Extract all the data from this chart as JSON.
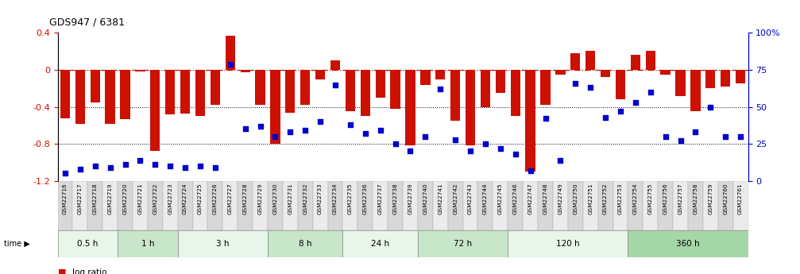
{
  "title": "GDS947 / 6381",
  "samples": [
    "GSM22716",
    "GSM22717",
    "GSM22718",
    "GSM22719",
    "GSM22720",
    "GSM22721",
    "GSM22722",
    "GSM22723",
    "GSM22724",
    "GSM22725",
    "GSM22726",
    "GSM22727",
    "GSM22728",
    "GSM22729",
    "GSM22730",
    "GSM22731",
    "GSM22732",
    "GSM22733",
    "GSM22734",
    "GSM22735",
    "GSM22736",
    "GSM22737",
    "GSM22738",
    "GSM22739",
    "GSM22740",
    "GSM22741",
    "GSM22742",
    "GSM22743",
    "GSM22744",
    "GSM22745",
    "GSM22746",
    "GSM22747",
    "GSM22748",
    "GSM22749",
    "GSM22750",
    "GSM22751",
    "GSM22752",
    "GSM22753",
    "GSM22754",
    "GSM22755",
    "GSM22756",
    "GSM22757",
    "GSM22758",
    "GSM22759",
    "GSM22760",
    "GSM22761"
  ],
  "log_ratio": [
    -0.52,
    -0.58,
    -0.35,
    -0.58,
    -0.53,
    -0.02,
    -0.88,
    -0.48,
    -0.47,
    -0.5,
    -0.38,
    0.37,
    -0.03,
    -0.38,
    -0.8,
    -0.46,
    -0.38,
    -0.1,
    0.1,
    -0.45,
    -0.5,
    -0.3,
    -0.42,
    -0.82,
    -0.16,
    -0.1,
    -0.55,
    -0.82,
    -0.4,
    -0.25,
    -0.5,
    -1.1,
    -0.38,
    -0.05,
    0.18,
    0.21,
    -0.08,
    -0.32,
    0.16,
    0.21,
    -0.05,
    -0.28,
    -0.45,
    -0.2,
    -0.18,
    -0.15
  ],
  "percentile": [
    5,
    8,
    10,
    9,
    11,
    14,
    11,
    10,
    9,
    10,
    9,
    79,
    35,
    37,
    30,
    33,
    34,
    40,
    65,
    38,
    32,
    34,
    25,
    20,
    30,
    62,
    28,
    20,
    25,
    22,
    18,
    7,
    42,
    14,
    66,
    63,
    43,
    47,
    53,
    60,
    30,
    27,
    33,
    50,
    30,
    30
  ],
  "time_groups": [
    {
      "label": "0.5 h",
      "start": 0,
      "end": 3,
      "color": "#e8f5e9"
    },
    {
      "label": "1 h",
      "start": 4,
      "end": 7,
      "color": "#c8e6c9"
    },
    {
      "label": "3 h",
      "start": 8,
      "end": 13,
      "color": "#e8f5e9"
    },
    {
      "label": "8 h",
      "start": 14,
      "end": 18,
      "color": "#c8e6c9"
    },
    {
      "label": "24 h",
      "start": 19,
      "end": 23,
      "color": "#e8f5e9"
    },
    {
      "label": "72 h",
      "start": 24,
      "end": 29,
      "color": "#c8e6c9"
    },
    {
      "label": "120 h",
      "start": 30,
      "end": 37,
      "color": "#e8f5e9"
    },
    {
      "label": "360 h",
      "start": 38,
      "end": 45,
      "color": "#a5d6a7"
    }
  ],
  "ylim_left": [
    -1.2,
    0.4
  ],
  "ylim_right": [
    0,
    100
  ],
  "bar_color": "#cc1100",
  "dot_color": "#0000cc",
  "hline_color": "#cc1100",
  "hline_style": "-.",
  "dot_yticks": [
    0,
    25,
    50,
    75,
    100
  ],
  "dot_ytick_labels": [
    "0",
    "25",
    "50",
    "75",
    "100%"
  ],
  "left_yticks": [
    -1.2,
    -0.8,
    -0.4,
    0.0,
    0.4
  ],
  "left_ytick_labels": [
    "-1.2",
    "-0.8",
    "-0.4",
    "0",
    "0.4"
  ],
  "xlabel_box_colors": [
    "#d8d8d8",
    "#ebebeb"
  ]
}
